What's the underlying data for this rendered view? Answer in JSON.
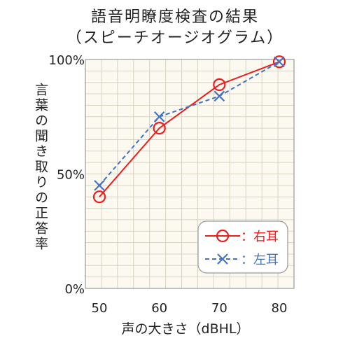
{
  "chart_data": {
    "type": "line",
    "title_line1": "語音明瞭度検査の結果",
    "title_line2": "（スピーチオージオグラム）",
    "xlabel": "声の大きさ（dBHL）",
    "ylabel": "言葉の聞き取りの正答率",
    "x": [
      50,
      60,
      70,
      80
    ],
    "x_ticks": [
      "50",
      "60",
      "70",
      "80"
    ],
    "xlim": [
      50,
      80
    ],
    "ylim": [
      0,
      100
    ],
    "y_ticks": [
      {
        "value": 0,
        "label": "0%"
      },
      {
        "value": 50,
        "label": "50%"
      },
      {
        "value": 100,
        "label": "100%"
      }
    ],
    "grid": true,
    "legend_position": "bottom-right",
    "series": [
      {
        "name": "右耳",
        "legend_label": "：右耳",
        "values": [
          40,
          70,
          89,
          99
        ],
        "color": "#ee1c1c",
        "marker": "circle",
        "line": "solid"
      },
      {
        "name": "左耳",
        "legend_label": "：左耳",
        "values": [
          45,
          75,
          84,
          99
        ],
        "color": "#4472c4",
        "marker": "x",
        "line": "dashed"
      }
    ]
  }
}
